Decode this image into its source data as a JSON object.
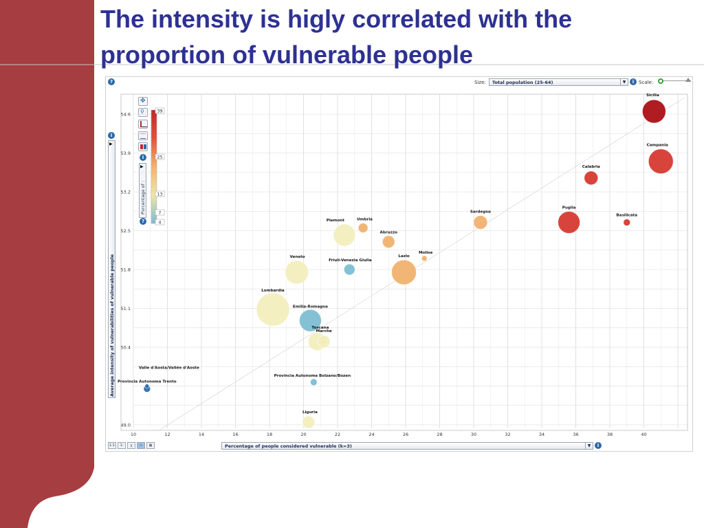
{
  "slide": {
    "title_line1": "The intensity is higly correlated with the",
    "title_line2": "proportion of vulnerable people",
    "colors": {
      "title": "#2e3192",
      "band": "#a63d40"
    }
  },
  "controls": {
    "size_label": "Size:",
    "size_select": "Total population (25-64)",
    "scale_label": "Scale:",
    "x_select": "Percentage of people considered vulnerable (k=3)",
    "y_axis_label": "Average intensity of vulnerabilities of vulnerable people",
    "color_label": "Percentage of :",
    "info_icon": "info-icon",
    "help_icon": "question-icon"
  },
  "color_legend": {
    "ticks": [
      "39",
      "25",
      "13",
      "7",
      "4"
    ],
    "colors": [
      "#c0282c",
      "#e8503a",
      "#f3b36e",
      "#f0e6a8",
      "#7bbcd0"
    ]
  },
  "chart_data": {
    "type": "scatter",
    "variant": "bubble",
    "xlabel": "Percentage of people considered vulnerable (k=3)",
    "ylabel": "Average intensity of vulnerabilities of vulnerable people",
    "xlim": [
      10,
      42
    ],
    "ylim": [
      49.0,
      54.9
    ],
    "x_ticks": [
      10,
      12,
      14,
      16,
      18,
      20,
      22,
      24,
      26,
      28,
      30,
      32,
      34,
      36,
      38,
      40
    ],
    "y_ticks": [
      49.0,
      50.4,
      51.1,
      51.8,
      52.5,
      53.2,
      53.9,
      54.6
    ],
    "y_tick_labels": [
      "49.0",
      "50.4",
      "51.1",
      "51.8",
      "52.5",
      "53.2",
      "53.9",
      "54.6"
    ],
    "grid": true,
    "trendline": true,
    "points": [
      {
        "name": "Sicilia",
        "x": 40.6,
        "y": 54.65,
        "size": 17,
        "color": "#a8090f"
      },
      {
        "name": "Campania",
        "x": 41.0,
        "y": 53.75,
        "size": 18,
        "color": "#d5342a"
      },
      {
        "name": "Calabria",
        "x": 36.9,
        "y": 53.45,
        "size": 10,
        "color": "#d5342a"
      },
      {
        "name": "Puglia",
        "x": 35.6,
        "y": 52.65,
        "size": 16,
        "color": "#d5342a"
      },
      {
        "name": "Basilicata",
        "x": 39.0,
        "y": 52.65,
        "size": 5,
        "color": "#d5342a"
      },
      {
        "name": "Sardegna",
        "x": 30.4,
        "y": 52.65,
        "size": 10,
        "color": "#f0b06a"
      },
      {
        "name": "Piemont",
        "x": 22.4,
        "y": 52.42,
        "size": 16,
        "color": "#f2eebb"
      },
      {
        "name": "Umbria",
        "x": 23.5,
        "y": 52.55,
        "size": 7,
        "color": "#f0b06a"
      },
      {
        "name": "Abruzzo",
        "x": 25.0,
        "y": 52.3,
        "size": 9,
        "color": "#f0b06a"
      },
      {
        "name": "Molise",
        "x": 27.1,
        "y": 52.0,
        "size": 4,
        "color": "#f0b06a"
      },
      {
        "name": "Lazio",
        "x": 25.9,
        "y": 51.75,
        "size": 18,
        "color": "#f0b06a"
      },
      {
        "name": "Friuli-Venezia Giulia",
        "x": 22.7,
        "y": 51.8,
        "size": 8,
        "color": "#7bbcd0"
      },
      {
        "name": "Veneto",
        "x": 19.6,
        "y": 51.75,
        "size": 17,
        "color": "#f2eebb"
      },
      {
        "name": "Lombardia",
        "x": 18.2,
        "y": 51.08,
        "size": 24,
        "color": "#f2eebb"
      },
      {
        "name": "Emilia-Romagna",
        "x": 20.4,
        "y": 50.88,
        "size": 16,
        "color": "#7bbcd0"
      },
      {
        "name": "Toscana",
        "x": 20.8,
        "y": 50.5,
        "size": 13,
        "color": "#f2eebb"
      },
      {
        "name": "Marche",
        "x": 21.2,
        "y": 50.5,
        "size": 9,
        "color": "#f2eebb"
      },
      {
        "name": "Valle d'Aosta/Vallée d'Aoste",
        "x": 10.8,
        "y": 49.7,
        "size": 3,
        "color": "#2b6aa8"
      },
      {
        "name": "Provincia Autonoma Trento",
        "x": 10.8,
        "y": 49.65,
        "size": 5,
        "color": "#2b6aa8"
      },
      {
        "name": "Provincia Autonoma Bolzano/Bozen",
        "x": 20.6,
        "y": 49.77,
        "size": 5,
        "color": "#7bbcd0"
      },
      {
        "name": "Liguria",
        "x": 20.3,
        "y": 49.05,
        "size": 9,
        "color": "#f2eebb"
      }
    ]
  }
}
